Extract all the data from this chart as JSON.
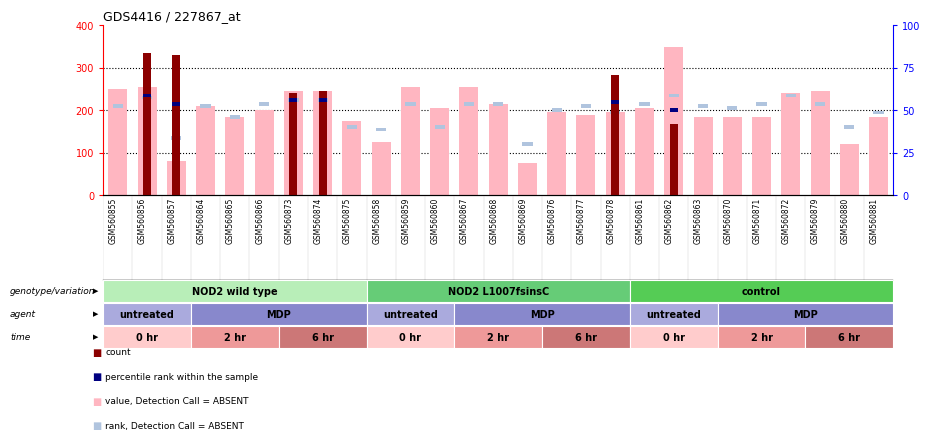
{
  "title": "GDS4416 / 227867_at",
  "samples": [
    "GSM560855",
    "GSM560856",
    "GSM560857",
    "GSM560864",
    "GSM560865",
    "GSM560866",
    "GSM560873",
    "GSM560874",
    "GSM560875",
    "GSM560858",
    "GSM560859",
    "GSM560860",
    "GSM560867",
    "GSM560868",
    "GSM560869",
    "GSM560876",
    "GSM560877",
    "GSM560878",
    "GSM560861",
    "GSM560862",
    "GSM560863",
    "GSM560870",
    "GSM560871",
    "GSM560872",
    "GSM560879",
    "GSM560880",
    "GSM560881"
  ],
  "value_absent": [
    250,
    255,
    80,
    210,
    185,
    200,
    245,
    245,
    175,
    125,
    255,
    205,
    255,
    215,
    75,
    195,
    190,
    195,
    205,
    350,
    185,
    185,
    185,
    240,
    245,
    120,
    185
  ],
  "count": [
    0,
    335,
    330,
    0,
    0,
    0,
    240,
    245,
    0,
    0,
    0,
    0,
    0,
    0,
    0,
    0,
    0,
    282,
    0,
    168,
    0,
    0,
    0,
    0,
    0,
    0,
    0
  ],
  "rank_absent_y": [
    210,
    230,
    135,
    210,
    185,
    215,
    225,
    225,
    160,
    155,
    215,
    160,
    215,
    215,
    120,
    200,
    210,
    195,
    215,
    235,
    210,
    205,
    215,
    235,
    215,
    160,
    195
  ],
  "percentile_rank_y": [
    0,
    235,
    215,
    0,
    0,
    0,
    225,
    225,
    0,
    0,
    0,
    0,
    0,
    0,
    0,
    0,
    0,
    220,
    0,
    200,
    0,
    0,
    0,
    0,
    0,
    0,
    0
  ],
  "has_count": [
    false,
    true,
    true,
    false,
    false,
    false,
    true,
    true,
    false,
    false,
    false,
    false,
    false,
    false,
    false,
    false,
    false,
    true,
    false,
    true,
    false,
    false,
    false,
    false,
    false,
    false,
    false
  ],
  "has_percentile": [
    false,
    true,
    true,
    false,
    false,
    false,
    true,
    true,
    false,
    false,
    false,
    false,
    false,
    false,
    false,
    false,
    false,
    true,
    false,
    true,
    false,
    false,
    false,
    false,
    false,
    false,
    false
  ],
  "ylim": [
    0,
    400
  ],
  "y_ticks_left": [
    0,
    100,
    200,
    300,
    400
  ],
  "y_ticks_right": [
    0,
    25,
    50,
    75,
    100
  ],
  "color_count": "#8B0000",
  "color_percentile": "#000080",
  "color_value_absent": "#FFB6C1",
  "color_rank_absent": "#B0C4DE",
  "color_bg": "#FFFFFF",
  "genotype_groups": [
    {
      "label": "NOD2 wild type",
      "start": 0,
      "end": 8,
      "color": "#B8EEB8"
    },
    {
      "label": "NOD2 L1007fsinsC",
      "start": 9,
      "end": 17,
      "color": "#66CC77"
    },
    {
      "label": "control",
      "start": 18,
      "end": 26,
      "color": "#55CC55"
    }
  ],
  "agent_groups": [
    {
      "label": "untreated",
      "start": 0,
      "end": 2,
      "color": "#AAAADD"
    },
    {
      "label": "MDP",
      "start": 3,
      "end": 8,
      "color": "#8888CC"
    },
    {
      "label": "untreated",
      "start": 9,
      "end": 11,
      "color": "#AAAADD"
    },
    {
      "label": "MDP",
      "start": 12,
      "end": 17,
      "color": "#8888CC"
    },
    {
      "label": "untreated",
      "start": 18,
      "end": 20,
      "color": "#AAAADD"
    },
    {
      "label": "MDP",
      "start": 21,
      "end": 26,
      "color": "#8888CC"
    }
  ],
  "time_groups": [
    {
      "label": "0 hr",
      "start": 0,
      "end": 2,
      "color": "#FFCCCC"
    },
    {
      "label": "2 hr",
      "start": 3,
      "end": 5,
      "color": "#EE9999"
    },
    {
      "label": "6 hr",
      "start": 6,
      "end": 8,
      "color": "#CC7777"
    },
    {
      "label": "0 hr",
      "start": 9,
      "end": 11,
      "color": "#FFCCCC"
    },
    {
      "label": "2 hr",
      "start": 12,
      "end": 14,
      "color": "#EE9999"
    },
    {
      "label": "6 hr",
      "start": 15,
      "end": 17,
      "color": "#CC7777"
    },
    {
      "label": "0 hr",
      "start": 18,
      "end": 20,
      "color": "#FFCCCC"
    },
    {
      "label": "2 hr",
      "start": 21,
      "end": 23,
      "color": "#EE9999"
    },
    {
      "label": "6 hr",
      "start": 24,
      "end": 26,
      "color": "#CC7777"
    }
  ],
  "row_labels": [
    "genotype/variation",
    "agent",
    "time"
  ],
  "legend_items": [
    {
      "color": "#8B0000",
      "label": "count"
    },
    {
      "color": "#000080",
      "label": "percentile rank within the sample"
    },
    {
      "color": "#FFB6C1",
      "label": "value, Detection Call = ABSENT"
    },
    {
      "color": "#B0C4DE",
      "label": "rank, Detection Call = ABSENT"
    }
  ]
}
